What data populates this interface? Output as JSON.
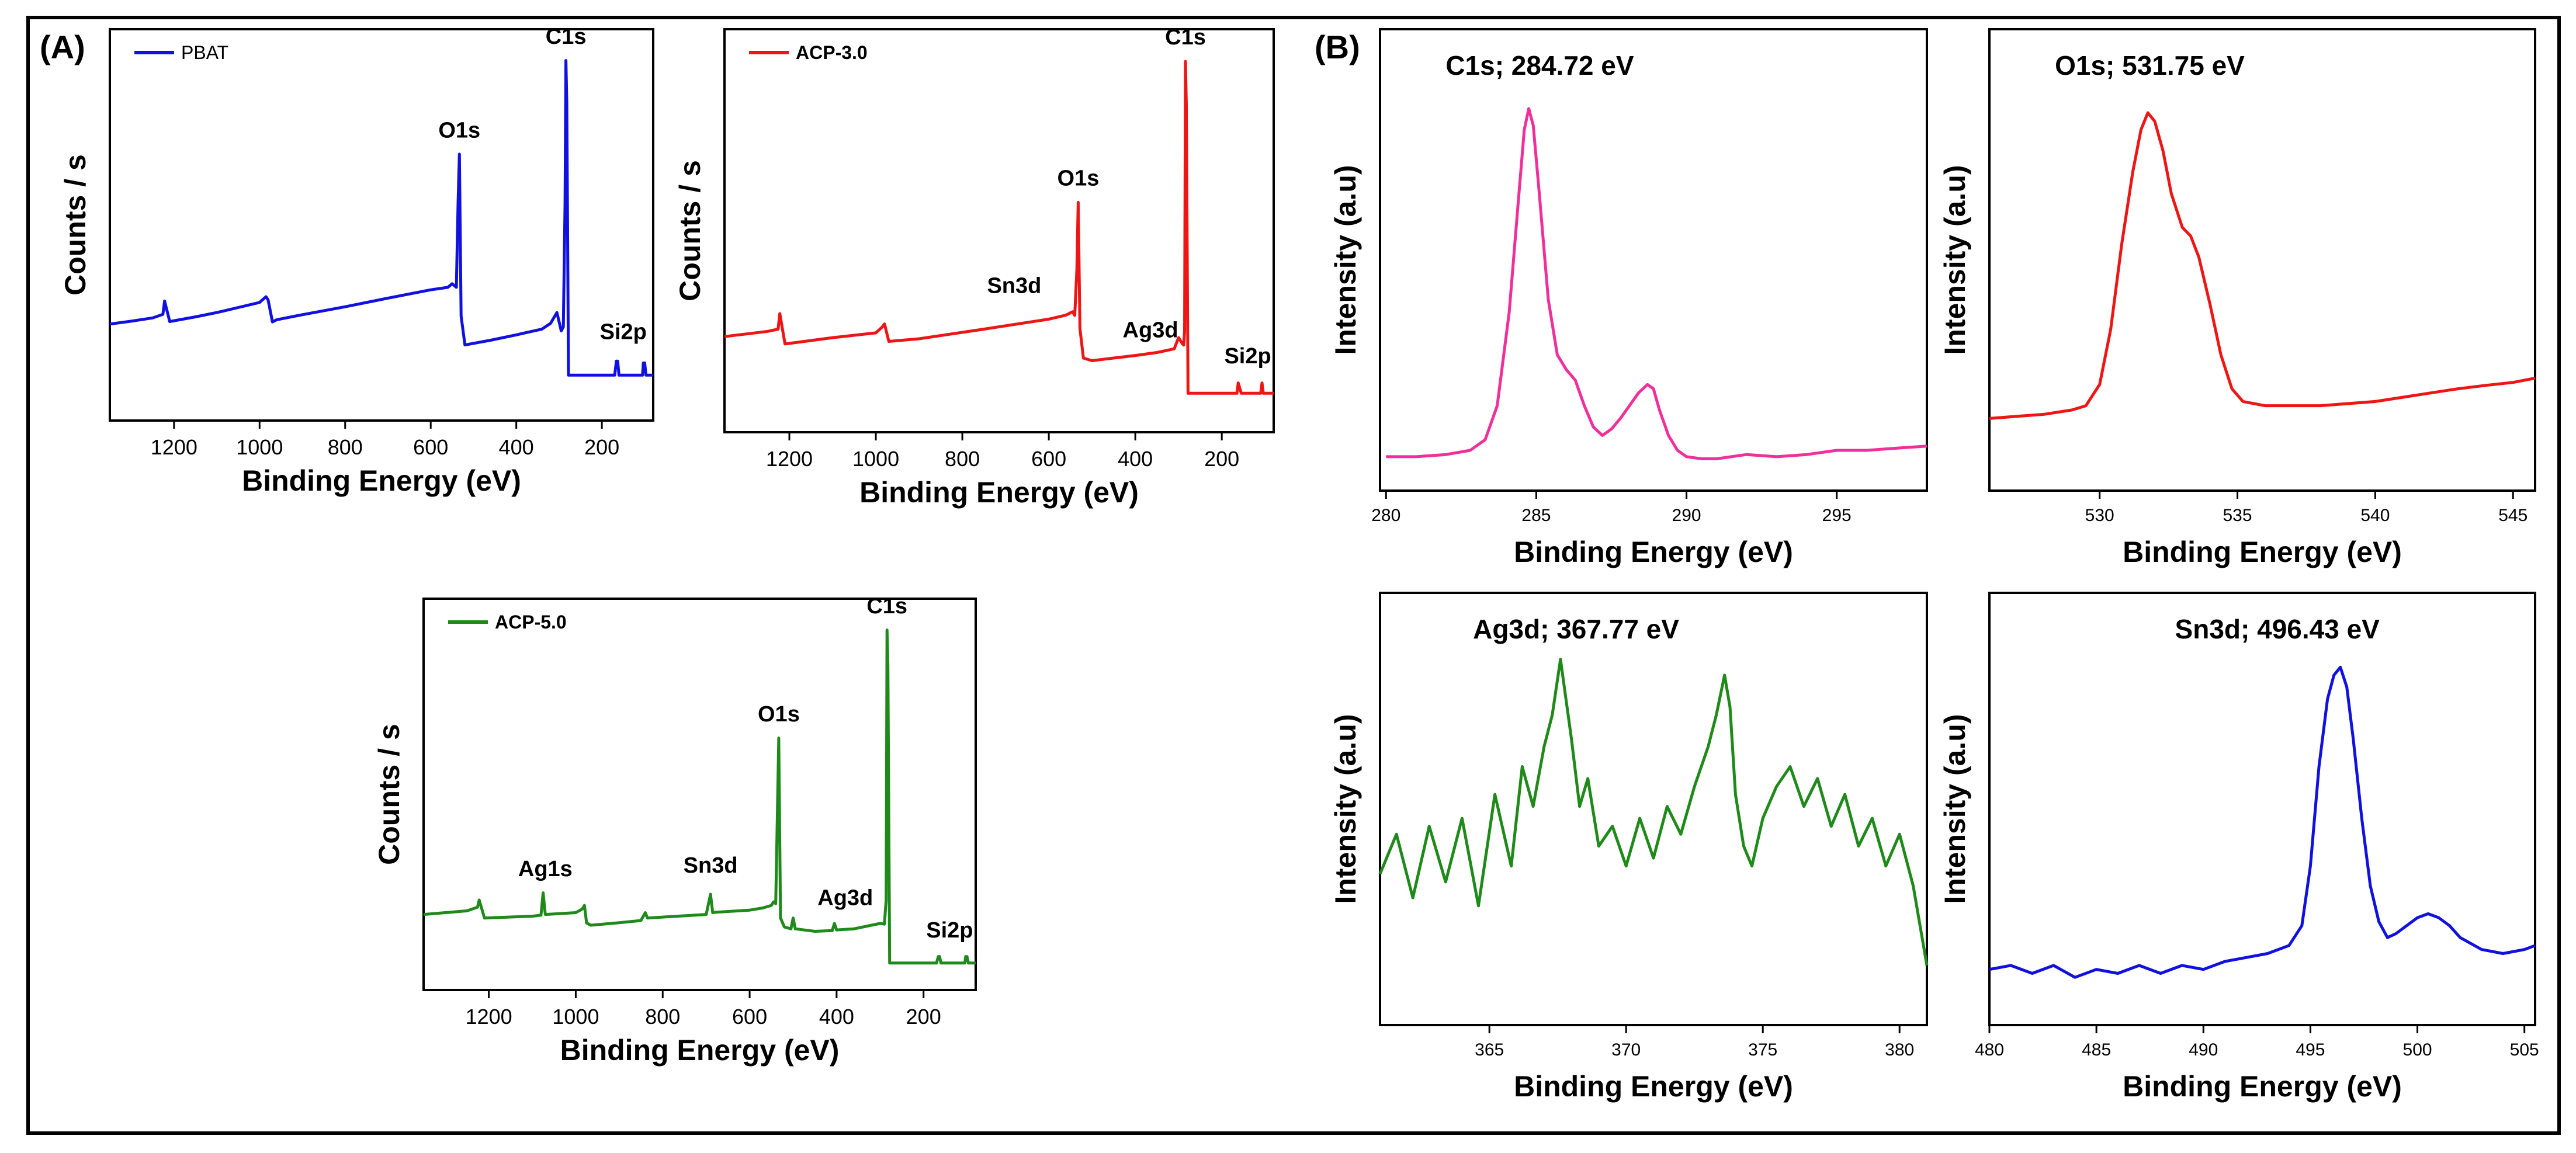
{
  "panel_labels": {
    "a": "(A)",
    "b": "(B)"
  },
  "chart_data": [
    {
      "id": "pbat",
      "type": "line",
      "group": "A",
      "x_reversed": true,
      "xlim": [
        80,
        1350
      ],
      "ylim": [
        0,
        100
      ],
      "xticks": [
        1200,
        1000,
        800,
        600,
        400,
        200
      ],
      "xlabel": "Binding Energy (eV)",
      "ylabel": "Counts / s",
      "legend": "PBAT",
      "legend_position": "top-left",
      "color": "#1010e0",
      "x": [
        1350,
        1300,
        1250,
        1226,
        1222,
        1210,
        1150,
        1100,
        1050,
        1000,
        985,
        980,
        970,
        960,
        900,
        800,
        700,
        600,
        560,
        550,
        540,
        536,
        533,
        529,
        520,
        460,
        400,
        340,
        320,
        305,
        295,
        290,
        286,
        284,
        282,
        278,
        250,
        200,
        170,
        166,
        163,
        160,
        130,
        105,
        103,
        100,
        97,
        90,
        80
      ],
      "y": [
        26.8,
        27.6,
        28.5,
        29.5,
        33.2,
        27.5,
        28.8,
        30,
        31.4,
        32.8,
        34.4,
        33.5,
        27.4,
        28,
        29.4,
        31.6,
        34,
        36.3,
        37,
        38,
        37,
        61,
        74,
        29,
        21,
        22.3,
        23.8,
        25.4,
        27,
        30,
        24.9,
        26,
        60,
        100,
        88,
        12.6,
        12.6,
        12.6,
        12.6,
        16.5,
        16.5,
        12.6,
        12.6,
        12.6,
        16,
        16,
        12.6,
        12.6,
        12.6
      ]
    },
    {
      "id": "acp30",
      "type": "line",
      "group": "A",
      "x_reversed": true,
      "xlim": [
        80,
        1350
      ],
      "ylim": [
        0,
        100
      ],
      "xticks": [
        1200,
        1000,
        800,
        600,
        400,
        200
      ],
      "xlabel": "Binding Energy (eV)",
      "ylabel": "Counts / s",
      "legend": "ACP-3.0",
      "legend_position": "top-left",
      "color": "#ee1515",
      "x": [
        1350,
        1300,
        1250,
        1226,
        1222,
        1210,
        1100,
        1000,
        985,
        980,
        970,
        900,
        750,
        600,
        560,
        545,
        540,
        535,
        532,
        528,
        520,
        500,
        450,
        400,
        350,
        310,
        300,
        292,
        288,
        286,
        284,
        282,
        278,
        250,
        200,
        165,
        162,
        155,
        110,
        107,
        104,
        90,
        80
      ],
      "y": [
        25.8,
        26.5,
        27.2,
        27.8,
        32,
        23.8,
        25.5,
        26.8,
        28.4,
        29.2,
        24.5,
        25.2,
        27.8,
        30.5,
        31.6,
        32.5,
        31.5,
        44,
        62,
        28,
        20,
        19.3,
        20,
        20.7,
        21.5,
        22.5,
        25.5,
        24,
        23.5,
        27,
        100,
        88,
        10.5,
        10.5,
        10.5,
        10.5,
        13.3,
        10.5,
        10.5,
        13.3,
        10.5,
        10.5,
        10.5
      ]
    },
    {
      "id": "acp50",
      "type": "line",
      "group": "A",
      "x_reversed": true,
      "xlim": [
        80,
        1350
      ],
      "ylim": [
        0,
        100
      ],
      "xticks": [
        1200,
        1000,
        800,
        600,
        400,
        200
      ],
      "xlabel": "Binding Energy (eV)",
      "ylabel": "Counts / s",
      "legend": "ACP-5.0",
      "legend_position": "top-left",
      "color": "#1f8a1a",
      "x": [
        1350,
        1300,
        1250,
        1226,
        1222,
        1210,
        1100,
        1080,
        1075,
        1070,
        1000,
        985,
        980,
        975,
        965,
        900,
        850,
        840,
        835,
        700,
        690,
        685,
        680,
        600,
        570,
        550,
        545,
        540,
        533,
        529,
        520,
        505,
        500,
        495,
        450,
        410,
        405,
        400,
        360,
        300,
        290,
        286,
        284,
        282,
        278,
        250,
        200,
        170,
        166,
        163,
        160,
        130,
        105,
        103,
        100,
        97,
        90,
        80
      ],
      "y": [
        21,
        21.5,
        22,
        23,
        25,
        20,
        20.5,
        20.8,
        27,
        21,
        21.5,
        22.5,
        23.5,
        18.6,
        18,
        18.7,
        19.3,
        21.5,
        20,
        21,
        26.6,
        21.5,
        21.6,
        22.2,
        22.8,
        23.5,
        24.5,
        24,
        70,
        20,
        17.5,
        17,
        20,
        17,
        16.3,
        16.5,
        18.5,
        16.7,
        17,
        18.5,
        18.3,
        25,
        100,
        90,
        7.5,
        7.5,
        7.5,
        7.5,
        9.3,
        9.3,
        7.5,
        7.5,
        7.5,
        9.3,
        9.3,
        7.5,
        7.5,
        7.5
      ]
    },
    {
      "id": "c1s",
      "type": "line",
      "group": "B",
      "xlim": [
        279.8,
        298
      ],
      "ylim": [
        0,
        100
      ],
      "xticks": [
        280,
        285,
        290,
        295
      ],
      "xlabel": "Binding Energy (eV)",
      "ylabel": "Intensity (a.u)",
      "title": "C1s; 284.72 eV",
      "color": "#f0309a",
      "x": [
        280,
        281,
        282,
        282.8,
        283.3,
        283.7,
        284.1,
        284.4,
        284.6,
        284.75,
        284.9,
        285.1,
        285.4,
        285.7,
        286,
        286.3,
        286.6,
        286.9,
        287.2,
        287.5,
        287.8,
        288.1,
        288.4,
        288.7,
        288.9,
        289.1,
        289.4,
        289.7,
        290,
        290.5,
        291,
        292,
        293,
        294,
        295,
        296,
        297,
        298
      ],
      "y": [
        8,
        8,
        8.5,
        9.5,
        12,
        20,
        42,
        68,
        85,
        90,
        86,
        70,
        45,
        32,
        28.5,
        26,
        20,
        15,
        13,
        14.5,
        17,
        20,
        23,
        25,
        24,
        19,
        13,
        9.5,
        8,
        7.5,
        7.5,
        8.5,
        8,
        8.5,
        9.5,
        9.5,
        10,
        10.5
      ]
    },
    {
      "id": "o1s",
      "type": "line",
      "group": "B",
      "xlim": [
        526,
        545.8
      ],
      "ylim": [
        0,
        100
      ],
      "xticks": [
        530,
        535,
        540,
        545
      ],
      "xlabel": "Binding Energy (eV)",
      "ylabel": "Intensity (a.u)",
      "title": "O1s; 531.75 eV",
      "color": "#ee1515",
      "x": [
        526,
        527,
        528,
        529,
        529.5,
        530,
        530.4,
        530.8,
        531.2,
        531.5,
        531.75,
        532,
        532.3,
        532.6,
        533,
        533.3,
        533.6,
        534,
        534.4,
        534.8,
        535.2,
        536,
        537,
        538,
        539,
        540,
        541,
        542,
        543,
        544,
        545,
        545.8
      ],
      "y": [
        17,
        17.5,
        18,
        19,
        20,
        25,
        38,
        58,
        75,
        85,
        89,
        87,
        80,
        70,
        62,
        60,
        55,
        44,
        32,
        24,
        21,
        20,
        20,
        20,
        20.5,
        21,
        22,
        23,
        24,
        24.8,
        25.5,
        26.5
      ]
    },
    {
      "id": "ag3d",
      "type": "line",
      "group": "B",
      "xlim": [
        361,
        381
      ],
      "ylim": [
        0,
        100
      ],
      "xticks": [
        365,
        370,
        375,
        380
      ],
      "xlabel": "Binding Energy (eV)",
      "ylabel": "Intensity (a.u)",
      "title": "Ag3d; 367.77 eV",
      "color": "#1f8a1a",
      "x": [
        361,
        361.6,
        362.2,
        362.8,
        363.4,
        364,
        364.6,
        365.2,
        365.8,
        366.2,
        366.6,
        367,
        367.3,
        367.6,
        367.8,
        368,
        368.3,
        368.6,
        369,
        369.5,
        370,
        370.5,
        371,
        371.5,
        372,
        372.5,
        373,
        373.3,
        373.6,
        373.8,
        374,
        374.3,
        374.6,
        375,
        375.5,
        376,
        376.5,
        377,
        377.5,
        378,
        378.5,
        379,
        379.5,
        380,
        380.5,
        381
      ],
      "y": [
        38,
        48,
        32,
        50,
        36,
        52,
        30,
        58,
        40,
        65,
        55,
        70,
        78,
        92,
        82,
        72,
        55,
        62,
        45,
        50,
        40,
        52,
        42,
        55,
        48,
        60,
        70,
        78,
        88,
        80,
        58,
        45,
        40,
        52,
        60,
        65,
        55,
        62,
        50,
        58,
        45,
        52,
        40,
        48,
        35,
        15
      ]
    },
    {
      "id": "sn3d",
      "type": "line",
      "group": "B",
      "xlim": [
        480,
        505.5
      ],
      "ylim": [
        0,
        100
      ],
      "xticks": [
        480,
        485,
        490,
        495,
        500,
        505
      ],
      "xlabel": "Binding Energy (eV)",
      "ylabel": "Intensity (a.u)",
      "title": "Sn3d; 496.43 eV",
      "color": "#1010e0",
      "x": [
        480,
        481,
        482,
        483,
        484,
        485,
        486,
        487,
        488,
        489,
        490,
        491,
        492,
        493,
        494,
        494.6,
        495,
        495.4,
        495.8,
        496.1,
        496.4,
        496.7,
        497,
        497.4,
        497.8,
        498.2,
        498.6,
        499,
        499.5,
        500,
        500.5,
        501,
        501.5,
        502,
        503,
        504,
        505,
        505.5
      ],
      "y": [
        14,
        15,
        13,
        15,
        12,
        14,
        13,
        15,
        13,
        15,
        14,
        16,
        17,
        18,
        20,
        25,
        40,
        65,
        82,
        88,
        90,
        85,
        72,
        52,
        35,
        26,
        22,
        23,
        25,
        27,
        28,
        27,
        25,
        22,
        19,
        18,
        19,
        20
      ]
    }
  ],
  "annotations": {
    "pbat": [
      {
        "text": "O1s",
        "x": 533,
        "y": 77
      },
      {
        "text": "C1s",
        "x": 284,
        "y": 103
      },
      {
        "text": "Si2p",
        "x": 150,
        "y": 21
      }
    ],
    "acp30": [
      {
        "text": "O1s",
        "x": 532,
        "y": 65
      },
      {
        "text": "C1s",
        "x": 284,
        "y": 103
      },
      {
        "text": "Sn3d",
        "x": 680,
        "y": 36
      },
      {
        "text": "Ag3d",
        "x": 365,
        "y": 24
      },
      {
        "text": "Si2p",
        "x": 140,
        "y": 17
      }
    ],
    "acp50": [
      {
        "text": "C1s",
        "x": 284,
        "y": 103
      },
      {
        "text": "O1s",
        "x": 533,
        "y": 73
      },
      {
        "text": "Ag1s",
        "x": 1070,
        "y": 30
      },
      {
        "text": "Sn3d",
        "x": 690,
        "y": 31
      },
      {
        "text": "Ag3d",
        "x": 380,
        "y": 22
      },
      {
        "text": "Si2p",
        "x": 140,
        "y": 13
      }
    ]
  }
}
